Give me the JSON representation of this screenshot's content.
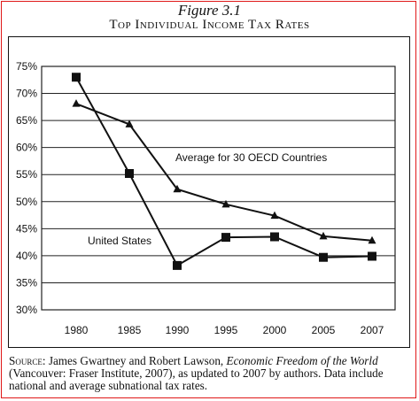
{
  "figure": {
    "number": "Figure 3.1",
    "title": "Top Individual Income Tax Rates"
  },
  "source": {
    "label": "Source:",
    "authors": "James Gwartney and Robert Lawson,",
    "book": "Economic Freedom of the World",
    "rest": "(Vancouver: Fraser Institute, 2007), as updated to 2007 by authors. Data include national and average subnational tax rates."
  },
  "chart_data": {
    "type": "line",
    "x": [
      1980,
      1985,
      1990,
      1995,
      2000,
      2005,
      2007
    ],
    "x_tick_labels": [
      "1980",
      "1985",
      "1990",
      "1995",
      "2000",
      "2005",
      "2007"
    ],
    "y_tick_labels": [
      "30%",
      "35%",
      "40%",
      "45%",
      "50%",
      "55%",
      "60%",
      "65%",
      "70%",
      "75%"
    ],
    "ylim": [
      30,
      75
    ],
    "grid": true,
    "series": [
      {
        "name": "United States",
        "marker": "square",
        "values": [
          73,
          55.2,
          38.2,
          43.4,
          43.5,
          39.7,
          39.9
        ]
      },
      {
        "name": "Average for 30 OECD Countries",
        "marker": "triangle",
        "values": [
          68.1,
          64.3,
          52.3,
          49.5,
          47.4,
          43.6,
          42.8
        ]
      }
    ]
  }
}
